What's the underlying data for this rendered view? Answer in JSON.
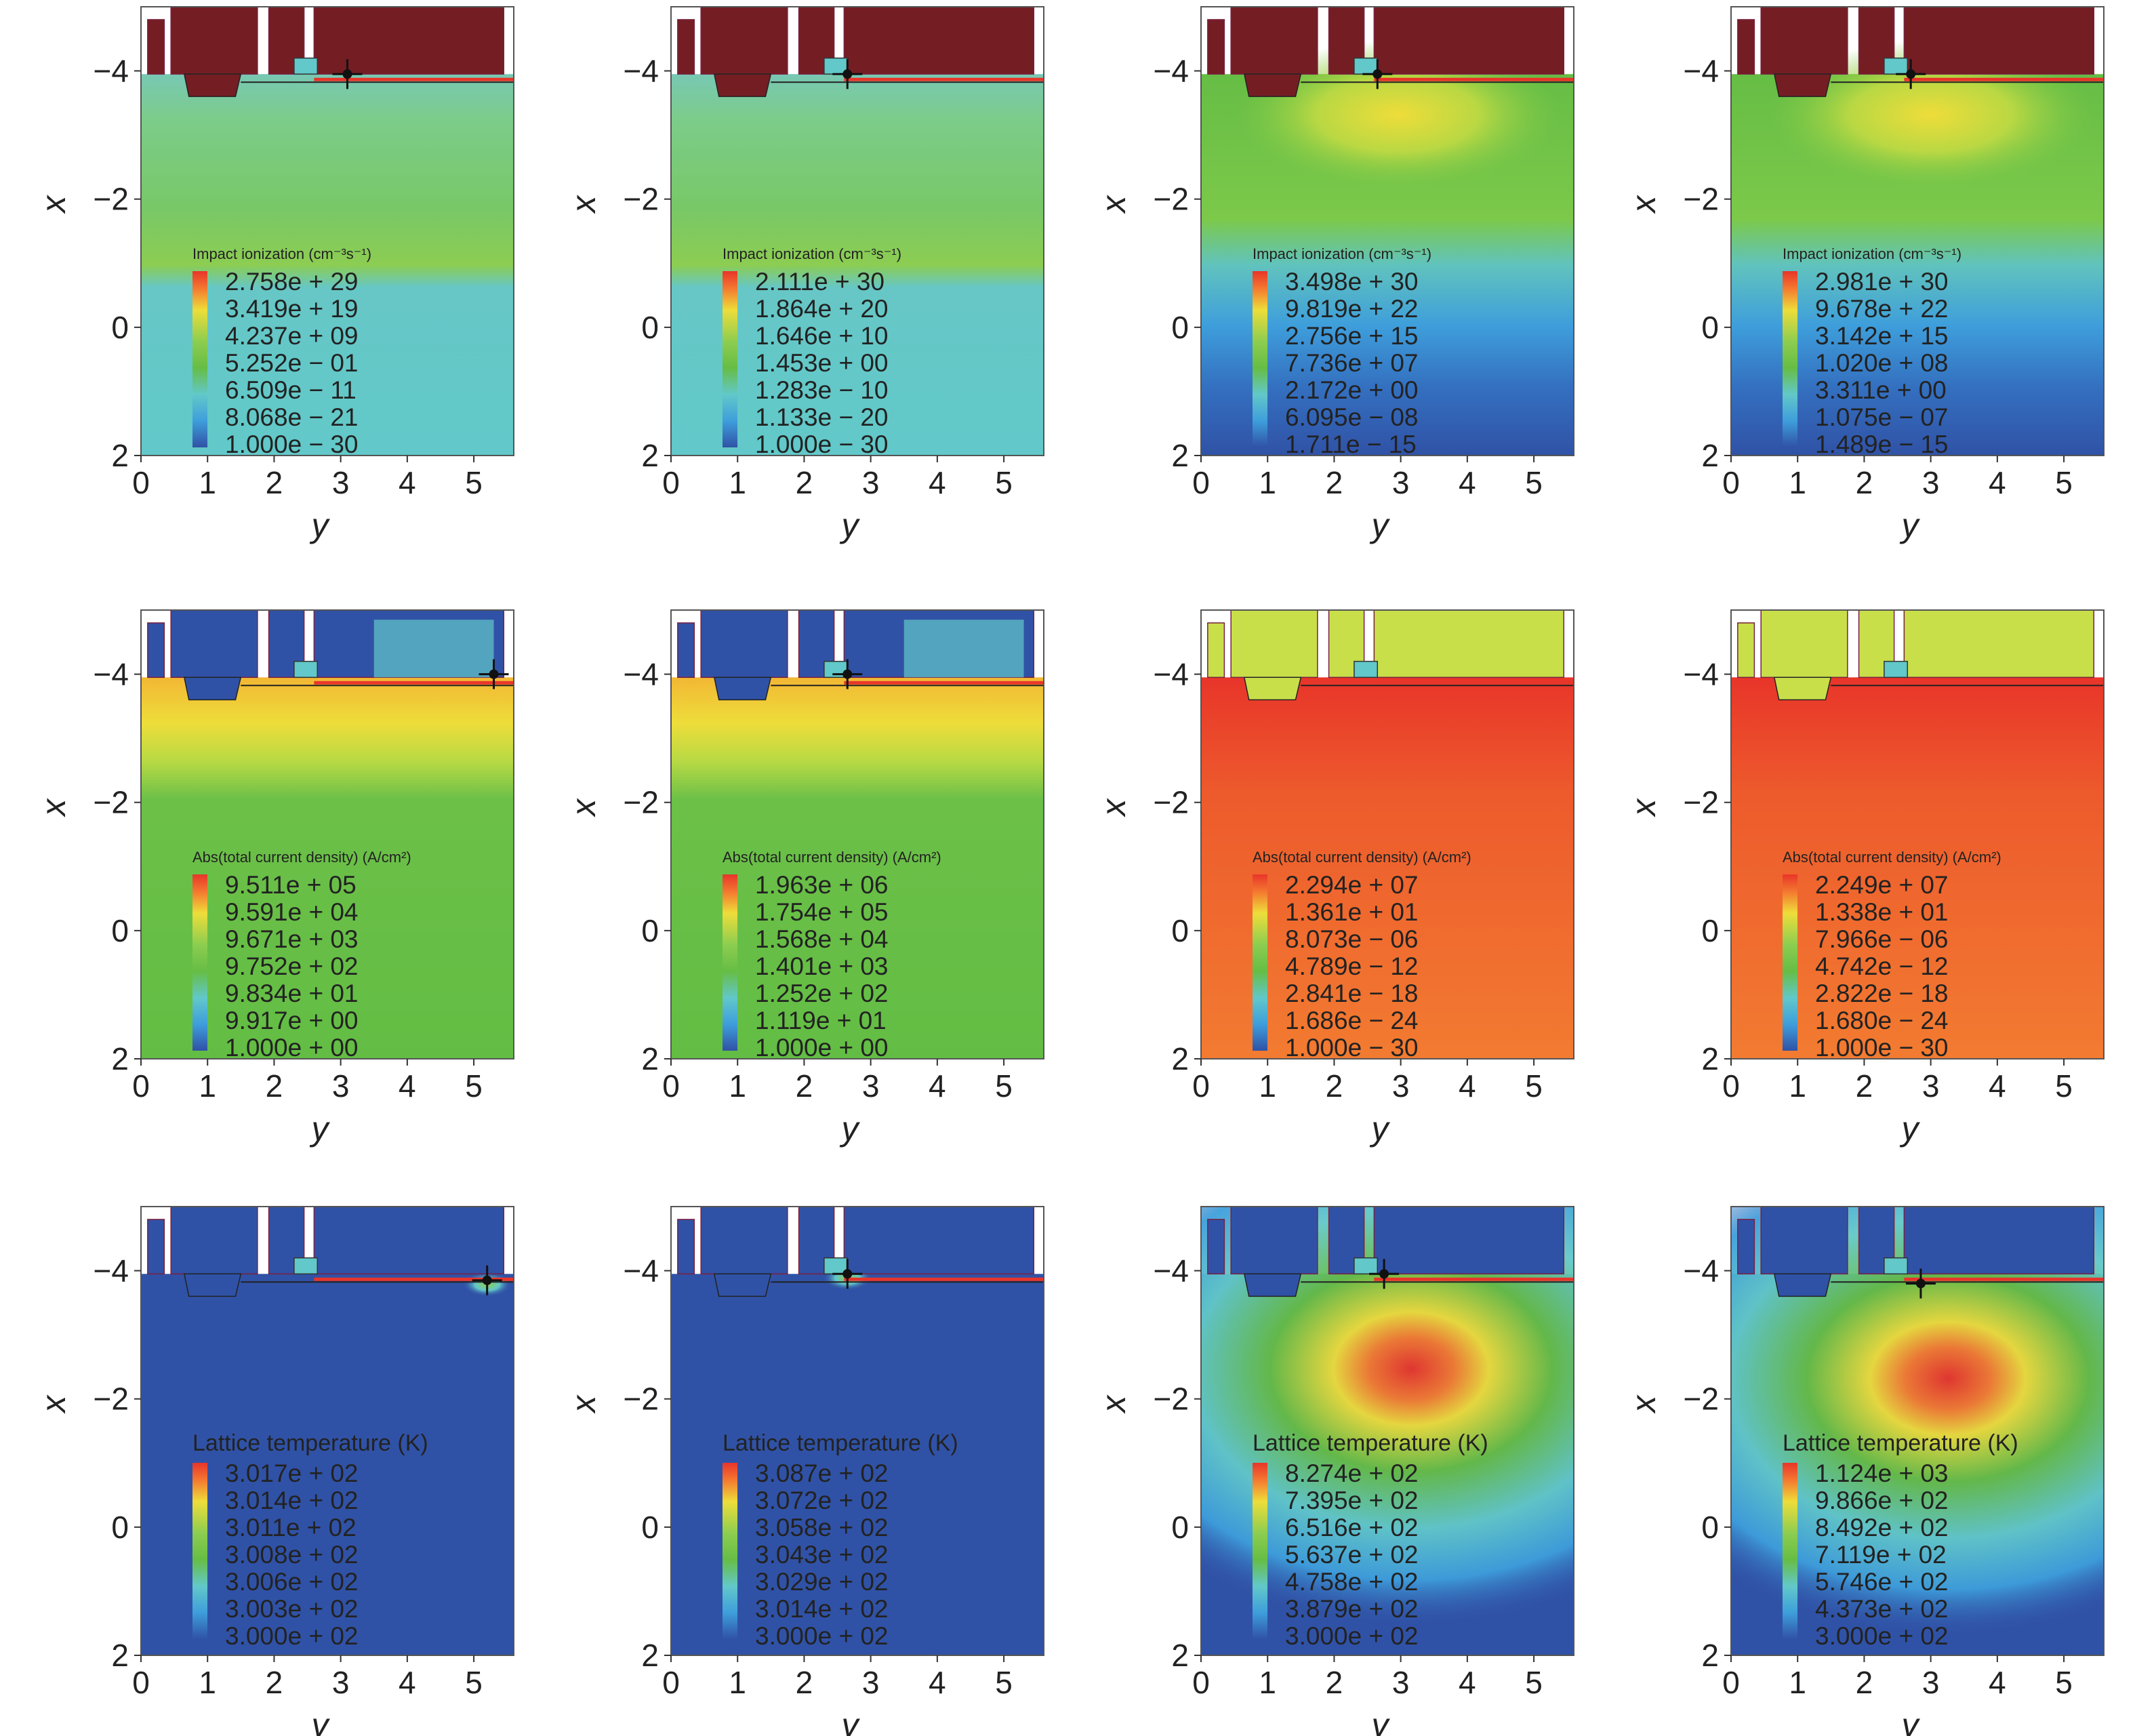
{
  "colors": {
    "red": "#e8352a",
    "orange": "#f47a30",
    "yellow": "#eedd3a",
    "green": "#66bd45",
    "ltgreen": "#8ccd50",
    "cyan": "#62c8c9",
    "ltblue": "#3e9edb",
    "blue": "#3052a6",
    "maroon": "#741e24",
    "frame": "#555555"
  },
  "axes": {
    "xlabel": "y",
    "ylabel": "x",
    "xticks": [
      "0",
      "1",
      "2",
      "3",
      "4",
      "5"
    ],
    "yticks": [
      "−4",
      "−2",
      "0",
      "2"
    ],
    "xlim": [
      0,
      5.6
    ],
    "ylim": [
      -5,
      2
    ]
  },
  "chart_data": [
    {
      "type": "heatmap",
      "row": 0,
      "col": 0,
      "title": "Impact ionization (cm⁻³s⁻¹)",
      "legend": [
        "2.758e + 29",
        "3.419e + 19",
        "4.237e + 09",
        "5.252e − 01",
        "6.509e − 11",
        "8.068e − 21",
        "1.000e − 30"
      ],
      "bg": "green_cyan",
      "probe": [
        3.1,
        -3.95
      ]
    },
    {
      "type": "heatmap",
      "row": 0,
      "col": 1,
      "title": "Impact ionization (cm⁻³s⁻¹)",
      "legend": [
        "2.111e + 30",
        "1.864e + 20",
        "1.646e + 10",
        "1.453e + 00",
        "1.283e − 10",
        "1.133e − 20",
        "1.000e − 30"
      ],
      "bg": "green_cyan",
      "probe": [
        2.65,
        -3.95
      ]
    },
    {
      "type": "heatmap",
      "row": 0,
      "col": 2,
      "title": "Impact ionization (cm⁻³s⁻¹)",
      "legend": [
        "3.498e + 30",
        "9.819e + 22",
        "2.756e + 15",
        "7.736e + 07",
        "2.172e + 00",
        "6.095e − 08",
        "1.711e − 15"
      ],
      "bg": "green_blue",
      "probe": [
        2.65,
        -3.95
      ]
    },
    {
      "type": "heatmap",
      "row": 0,
      "col": 3,
      "title": "Impact ionization (cm⁻³s⁻¹)",
      "legend": [
        "2.981e + 30",
        "9.678e + 22",
        "3.142e + 15",
        "1.020e + 08",
        "3.311e + 00",
        "1.075e − 07",
        "1.489e − 15"
      ],
      "bg": "green_blue",
      "probe": [
        2.7,
        -3.95
      ]
    },
    {
      "type": "heatmap",
      "row": 1,
      "col": 0,
      "title": "Abs(total current density) (A/cm²)",
      "legend": [
        "9.511e + 05",
        "9.591e + 04",
        "9.671e + 03",
        "9.752e + 02",
        "9.834e + 01",
        "9.917e + 00",
        "1.000e + 00"
      ],
      "bg": "yellow_green",
      "probe": [
        5.3,
        -4.0
      ]
    },
    {
      "type": "heatmap",
      "row": 1,
      "col": 1,
      "title": "Abs(total current density) (A/cm²)",
      "legend": [
        "1.963e + 06",
        "1.754e + 05",
        "1.568e + 04",
        "1.401e + 03",
        "1.252e + 02",
        "1.119e + 01",
        "1.000e + 00"
      ],
      "bg": "yellow_green",
      "probe": [
        2.65,
        -4.0
      ]
    },
    {
      "type": "heatmap",
      "row": 1,
      "col": 2,
      "title": "Abs(total current density) (A/cm²)",
      "legend": [
        "2.294e + 07",
        "1.361e + 01",
        "8.073e − 06",
        "4.789e − 12",
        "2.841e − 18",
        "1.686e − 24",
        "1.000e − 30"
      ],
      "bg": "red_orange",
      "probe": null
    },
    {
      "type": "heatmap",
      "row": 1,
      "col": 3,
      "title": "Abs(total current density) (A/cm²)",
      "legend": [
        "2.249e + 07",
        "1.338e + 01",
        "7.966e − 06",
        "4.742e − 12",
        "2.822e − 18",
        "1.680e − 24",
        "1.000e − 30"
      ],
      "bg": "red_orange",
      "probe": null
    },
    {
      "type": "heatmap",
      "row": 2,
      "col": 0,
      "title": "Lattice temperature (K)",
      "legend": [
        "3.017e + 02",
        "3.014e + 02",
        "3.011e + 02",
        "3.008e + 02",
        "3.006e + 02",
        "3.003e + 02",
        "3.000e + 02"
      ],
      "bg": "blue",
      "probe": [
        5.2,
        -3.85
      ]
    },
    {
      "type": "heatmap",
      "row": 2,
      "col": 1,
      "title": "Lattice temperature (K)",
      "legend": [
        "3.087e + 02",
        "3.072e + 02",
        "3.058e + 02",
        "3.043e + 02",
        "3.029e + 02",
        "3.014e + 02",
        "3.000e + 02"
      ],
      "bg": "blue",
      "probe": [
        2.65,
        -3.95
      ]
    },
    {
      "type": "heatmap",
      "row": 2,
      "col": 2,
      "title": "Lattice temperature (K)",
      "legend": [
        "8.274e + 02",
        "7.395e + 02",
        "6.516e + 02",
        "5.637e + 02",
        "4.758e + 02",
        "3.879e + 02",
        "3.000e + 02"
      ],
      "bg": "blue_hot",
      "probe": [
        2.75,
        -3.95
      ]
    },
    {
      "type": "heatmap",
      "row": 2,
      "col": 3,
      "title": "Lattice temperature (K)",
      "legend": [
        "1.124e + 03",
        "9.866e + 02",
        "8.492e + 02",
        "7.119e + 02",
        "5.746e + 02",
        "4.373e + 02",
        "3.000e + 02"
      ],
      "bg": "blue_hot",
      "probe": [
        2.85,
        -3.8
      ]
    }
  ]
}
